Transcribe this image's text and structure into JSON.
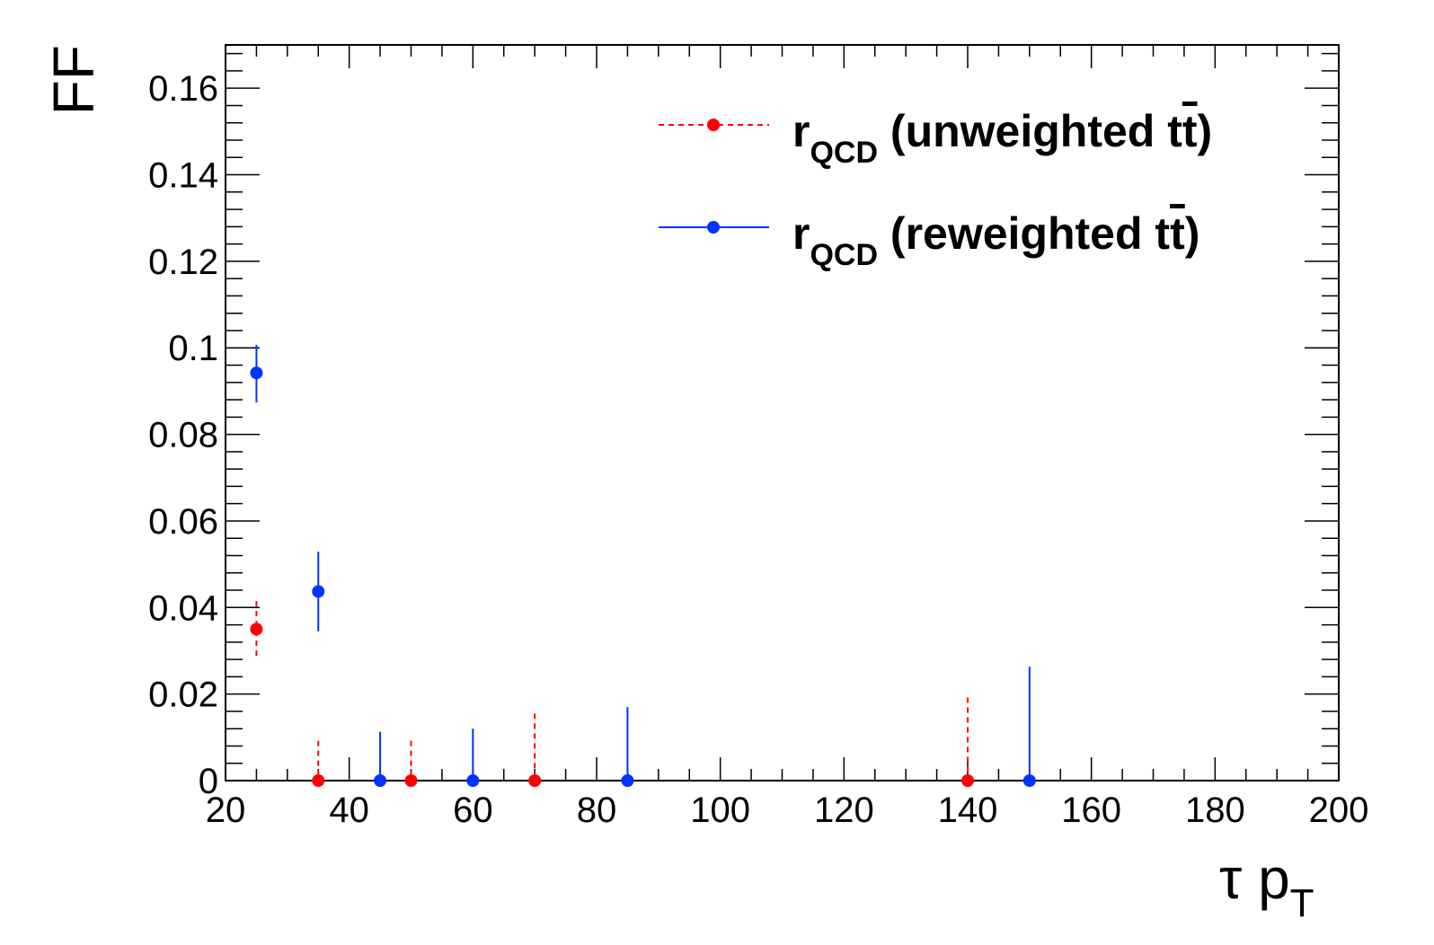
{
  "chart_data": {
    "type": "scatter",
    "xlabel": {
      "main": "τ p",
      "sub": "T"
    },
    "ylabel": "FF",
    "xlim": [
      20,
      200
    ],
    "ylim": [
      0,
      0.17
    ],
    "x_ticks": [
      20,
      40,
      60,
      80,
      100,
      120,
      140,
      160,
      180,
      200
    ],
    "x_tick_labels": [
      "20",
      "40",
      "60",
      "80",
      "100",
      "120",
      "140",
      "160",
      "180",
      "200"
    ],
    "y_ticks": [
      0,
      0.02,
      0.04,
      0.06,
      0.08,
      0.1,
      0.12,
      0.14,
      0.16
    ],
    "y_tick_labels": [
      "0",
      "0.02",
      "0.04",
      "0.06",
      "0.08",
      "0.1",
      "0.12",
      "0.14",
      "0.16"
    ],
    "grid": false,
    "legend_position": "top-right",
    "series": [
      {
        "name_main": "r",
        "name_sub": "QCD",
        "name_rest": " (unweighted t",
        "name_bar": "t",
        "name_close": ")",
        "color": "#ff0000",
        "line_style": "dashed",
        "points": [
          {
            "x": 25,
            "y": 0.035,
            "err_up": 0.0065,
            "err_down": 0.0065
          },
          {
            "x": 35,
            "y": 0.0,
            "err_up": 0.0092,
            "err_down": 0
          },
          {
            "x": 50,
            "y": 0.0,
            "err_up": 0.0092,
            "err_down": 0
          },
          {
            "x": 70,
            "y": 0.0,
            "err_up": 0.0155,
            "err_down": 0
          },
          {
            "x": 140,
            "y": 0.0,
            "err_up": 0.0192,
            "err_down": 0
          }
        ]
      },
      {
        "name_main": "r",
        "name_sub": "QCD",
        "name_rest": " (reweighted t",
        "name_bar": "t",
        "name_close": ")",
        "color": "#0033ff",
        "line_style": "solid",
        "points": [
          {
            "x": 25,
            "y": 0.0942,
            "err_up": 0.0065,
            "err_down": 0.0068
          },
          {
            "x": 35,
            "y": 0.0437,
            "err_up": 0.0092,
            "err_down": 0.0092
          },
          {
            "x": 45,
            "y": 0.0,
            "err_up": 0.0113,
            "err_down": 0
          },
          {
            "x": 60,
            "y": 0.0,
            "err_up": 0.012,
            "err_down": 0
          },
          {
            "x": 85,
            "y": 0.0,
            "err_up": 0.017,
            "err_down": 0
          },
          {
            "x": 150,
            "y": 0.0,
            "err_up": 0.0263,
            "err_down": 0
          }
        ]
      }
    ]
  }
}
